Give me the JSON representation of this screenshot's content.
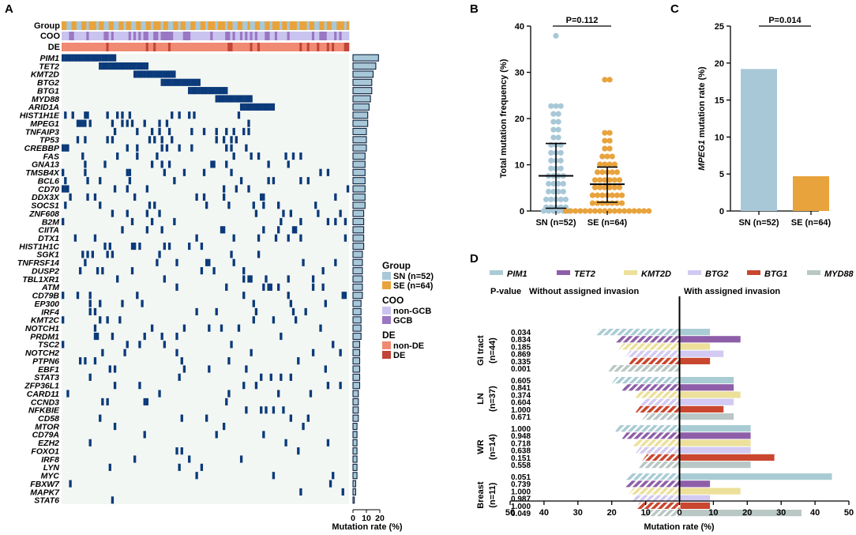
{
  "panels": {
    "A": {
      "label": "A",
      "track_titles": [
        "Group",
        "COO",
        "DE"
      ],
      "genes": [
        "PIM1",
        "TET2",
        "KMT2D",
        "BTG2",
        "BTG1",
        "MYD88",
        "ARID1A",
        "HIST1H1E",
        "MPEG1",
        "TNFAIP3",
        "TP53",
        "CREBBP",
        "FAS",
        "GNA13",
        "TMSB4X",
        "BCL6",
        "CD70",
        "DDX3X",
        "SOCS1",
        "ZNF608",
        "B2M",
        "CIITA",
        "DTX1",
        "HIST1H1C",
        "SGK1",
        "TNFRSF14",
        "DUSP2",
        "TBL1XR1",
        "ATM",
        "CD79B",
        "EP300",
        "IRF4",
        "KMT2C",
        "NOTCH1",
        "PRDM1",
        "TSC2",
        "NOTCH2",
        "PTPN6",
        "EBF1",
        "STAT3",
        "ZFP36L1",
        "CARD11",
        "CCND3",
        "NFKBIE",
        "CD58",
        "MTOR",
        "CD79A",
        "EZH2",
        "FOXO1",
        "IRF8",
        "LYN",
        "MYC",
        "FBXW7",
        "MAPK7",
        "STAT6"
      ],
      "mutation_rate_pct": [
        19,
        17,
        15,
        14,
        14,
        13,
        12,
        11,
        11,
        10,
        10,
        10,
        9,
        9,
        9,
        9,
        9,
        9,
        9,
        8,
        8,
        8,
        8,
        8,
        7,
        7,
        7,
        7,
        7,
        7,
        6,
        6,
        6,
        6,
        6,
        5,
        5,
        5,
        5,
        5,
        5,
        4,
        4,
        4,
        4,
        3,
        3,
        3,
        3,
        3,
        3,
        3,
        2,
        2,
        1
      ],
      "n_samples": 116,
      "bar_axis": {
        "ticks": [
          "0",
          "10",
          "20"
        ],
        "max": 20,
        "xlabel": "Mutation rate (%)"
      },
      "legend": {
        "group": {
          "title": "Group",
          "items": [
            {
              "label": "SN (n=52)",
              "color": "#a8c8d8"
            },
            {
              "label": "SE (n=64)",
              "color": "#e8a33d"
            }
          ]
        },
        "coo": {
          "title": "COO",
          "items": [
            {
              "label": "non-GCB",
              "color": "#c9c3ef"
            },
            {
              "label": "GCB",
              "color": "#9a77c2"
            }
          ]
        },
        "de": {
          "title": "DE",
          "items": [
            {
              "label": "non-DE",
              "color": "#f08a72"
            },
            {
              "label": "DE",
              "color": "#c2453a"
            }
          ]
        }
      },
      "colors": {
        "mutation": "#0b3a7a",
        "background": "#f3f7f3"
      }
    },
    "B": {
      "label": "B",
      "pvalue": "P=0.112",
      "ylabel": "Total mutation frequency (%)",
      "yticks": [
        "0",
        "10",
        "20",
        "30",
        "40"
      ],
      "ymax": 40
    },
    "C": {
      "label": "C",
      "pvalue": "P=0.014",
      "ylabel_gene": "MPEG1",
      "ylabel_rest": " mutation rate (%)",
      "yticks": [
        "0",
        "5",
        "10",
        "15",
        "20",
        "25"
      ],
      "ymax": 25
    },
    "D": {
      "label": "D",
      "legend": [
        {
          "label": "PIM1",
          "color": "#a9ccd4"
        },
        {
          "label": "TET2",
          "color": "#8e5fa8"
        },
        {
          "label": "KMT2D",
          "color": "#ece09a"
        },
        {
          "label": "BTG2",
          "color": "#d2caf2"
        },
        {
          "label": "BTG1",
          "color": "#c9472f"
        },
        {
          "label": "MYD88",
          "color": "#b9c7c5"
        }
      ],
      "pvalue_header": "P-value",
      "left_header": "Without assigned invasion",
      "right_header": "With assigned invasion",
      "xlabel": "Mutation rate (%)",
      "xticks": [
        "50",
        "40",
        "30",
        "20",
        "10",
        "0",
        "10",
        "20",
        "30",
        "40",
        "50"
      ],
      "xmax": 50
    }
  },
  "chart_data": [
    {
      "type": "heatmap",
      "title": "Oncoplot",
      "rows": "panels.A.genes",
      "bar_values_pct": "panels.A.mutation_rate_pct",
      "xlabel": "Mutation rate (%)"
    },
    {
      "type": "scatter",
      "title": "",
      "categories": [
        "SN (n=52)",
        "SE (n=64)"
      ],
      "ylabel": "Total mutation frequency (%)",
      "ylim": [
        0,
        40
      ],
      "series": [
        {
          "name": "SN (n=52)",
          "color": "#a8c8d8",
          "mean": 7.6,
          "sd_low": 0.6,
          "sd_high": 14.6,
          "values": [
            37.9,
            22.7,
            22.7,
            22.7,
            21,
            21,
            19.3,
            19.3,
            17.6,
            17.6,
            15.9,
            15.9,
            14.3,
            14.3,
            14.3,
            12.6,
            12.6,
            12.6,
            10.9,
            10.9,
            10.9,
            9.2,
            9.2,
            9.2,
            7.6,
            7.6,
            7.6,
            7.6,
            5.9,
            5.9,
            5.9,
            5.9,
            4.2,
            4.2,
            4.2,
            4.2,
            2.5,
            2.5,
            2.5,
            2.5,
            2.5,
            0.8,
            0.8,
            0.8,
            0.8,
            0.8,
            0,
            0,
            0,
            0,
            0,
            0
          ]
        },
        {
          "name": "SE (n=64)",
          "color": "#e8a33d",
          "mean": 5.8,
          "sd_low": 1.9,
          "sd_high": 9.5,
          "values": [
            28.4,
            28.4,
            16.9,
            16.9,
            15.2,
            15.2,
            13.5,
            13.5,
            11.8,
            11.8,
            11.8,
            10.1,
            10.1,
            10.1,
            10.1,
            8.4,
            8.4,
            8.4,
            8.4,
            8.4,
            6.7,
            6.7,
            6.7,
            6.7,
            6.7,
            6.7,
            5.1,
            5.1,
            5.1,
            5.1,
            5.1,
            5.1,
            3.4,
            3.4,
            3.4,
            3.4,
            3.4,
            3.4,
            3.4,
            1.7,
            1.7,
            1.7,
            1.7,
            1.7,
            1.7,
            1.7,
            0,
            0,
            0,
            0,
            0,
            0,
            0,
            0,
            0,
            0,
            0,
            0,
            0,
            0,
            0,
            0,
            0,
            0
          ]
        }
      ],
      "annotations": [
        "P=0.112"
      ]
    },
    {
      "type": "bar",
      "title": "",
      "categories": [
        "SN (n=52)",
        "SE (n=64)"
      ],
      "values": [
        19.2,
        4.7
      ],
      "colors": [
        "#a8c8d8",
        "#e8a33d"
      ],
      "ylabel": "MPEG1 mutation rate (%)",
      "ylim": [
        0,
        25
      ],
      "annotations": [
        "P=0.014"
      ]
    },
    {
      "type": "bar",
      "orientation": "horizontal",
      "title": "",
      "xlabel": "Mutation rate (%)",
      "xlim": [
        -50,
        50
      ],
      "genes": [
        "PIM1",
        "TET2",
        "KMT2D",
        "BTG2",
        "BTG1",
        "MYD88"
      ],
      "groups": [
        {
          "name": "GI tract",
          "n": "(n=44)",
          "pvalues": [
            "0.034",
            "0.834",
            "0.185",
            "0.869",
            "0.335",
            "0.001"
          ],
          "without": [
            25,
            19,
            18,
            16,
            15,
            21
          ],
          "with": [
            9,
            18,
            9,
            13,
            9,
            0
          ]
        },
        {
          "name": "LN",
          "n": "(n=37)",
          "pvalues": [
            "0.605",
            "0.841",
            "0.374",
            "0.604",
            "1.000",
            "0.671"
          ],
          "without": [
            20,
            17,
            13,
            12,
            13,
            11
          ],
          "with": [
            16,
            16,
            18,
            16,
            13,
            16
          ]
        },
        {
          "name": "WR",
          "n": "(n=14)",
          "pvalues": [
            "1.000",
            "0.948",
            "0.718",
            "0.638",
            "0.151",
            "0.558"
          ],
          "without": [
            19,
            17,
            14,
            13,
            11,
            12
          ],
          "with": [
            21,
            21,
            21,
            21,
            28,
            21
          ]
        },
        {
          "name": "Breast",
          "n": "(n=11)",
          "pvalues": [
            "0.051",
            "0.739",
            "1.000",
            "0.987",
            "1.000",
            "0.049"
          ],
          "without": [
            16,
            16,
            15,
            14,
            13,
            11
          ],
          "with": [
            45,
            9,
            18,
            9,
            9,
            36
          ]
        }
      ]
    }
  ]
}
